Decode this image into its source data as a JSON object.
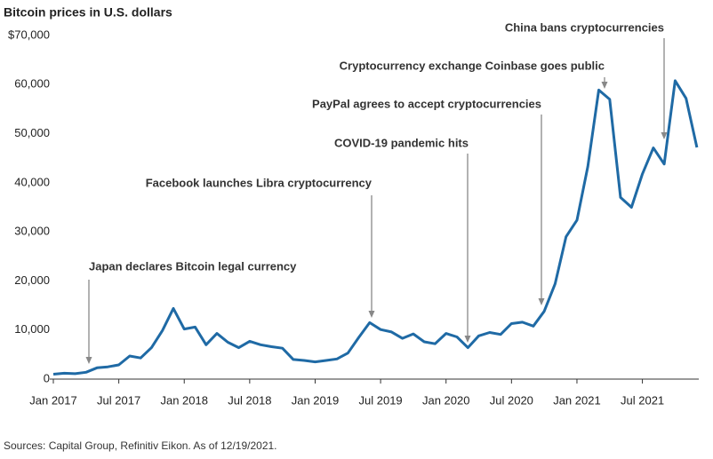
{
  "chart_data": {
    "type": "line",
    "title": "Bitcoin prices in U.S. dollars",
    "source": "Sources: Capital Group, Refinitiv Eikon. As of 12/19/2021.",
    "categories": [
      "Jan 2017",
      null,
      null,
      null,
      null,
      null,
      "Jul 2017",
      null,
      null,
      null,
      null,
      null,
      "Jan 2018",
      null,
      null,
      null,
      null,
      null,
      "Jul 2018",
      null,
      null,
      null,
      null,
      null,
      "Jan 2019",
      null,
      null,
      null,
      null,
      null,
      "Jul 2019",
      null,
      null,
      null,
      null,
      null,
      "Jan 2020",
      null,
      null,
      null,
      null,
      null,
      "Jul 2020",
      null,
      null,
      null,
      null,
      null,
      "Jan 2021",
      null,
      null,
      null,
      null,
      null,
      "Jul 2021",
      null,
      null,
      null,
      null,
      null
    ],
    "series": [
      {
        "name": "Bitcoin",
        "color": "#1f6aa5",
        "values": [
          1000,
          1200,
          1100,
          1400,
          2300,
          2500,
          2900,
          4700,
          4300,
          6400,
          9900,
          14400,
          10200,
          10600,
          7000,
          9300,
          7500,
          6400,
          7700,
          7000,
          6600,
          6300,
          4000,
          3800,
          3500,
          3800,
          4100,
          5300,
          8500,
          11500,
          10100,
          9600,
          8300,
          9200,
          7600,
          7200,
          9300,
          8600,
          6400,
          8800,
          9500,
          9100,
          11300,
          11600,
          10800,
          13800,
          19400,
          29000,
          32400,
          43300,
          58900,
          57000,
          37000,
          35000,
          41800,
          47100,
          43800,
          60800,
          57200,
          47200
        ]
      }
    ],
    "ylim": [
      0,
      70000
    ],
    "yticks": [
      0,
      {
        "value": 10000,
        "label": "10,000"
      },
      {
        "value": 20000,
        "label": "20,000"
      },
      {
        "value": 30000,
        "label": "30,000"
      },
      {
        "value": 40000,
        "label": "40,000"
      },
      {
        "value": 50000,
        "label": "50,000"
      },
      {
        "value": 60000,
        "label": "60,000"
      },
      {
        "value": 70000,
        "label": "$70,000"
      }
    ],
    "grid": false,
    "annotations": [
      "Japan declares Bitcoin legal currency",
      "Facebook launches Libra cryptocurrency",
      "COVID-19 pandemic hits",
      "PayPal agrees to accept cryptocurrencies",
      "Cryptocurrency exchange Coinbase goes public",
      "China bans cryptocurrencies"
    ]
  }
}
